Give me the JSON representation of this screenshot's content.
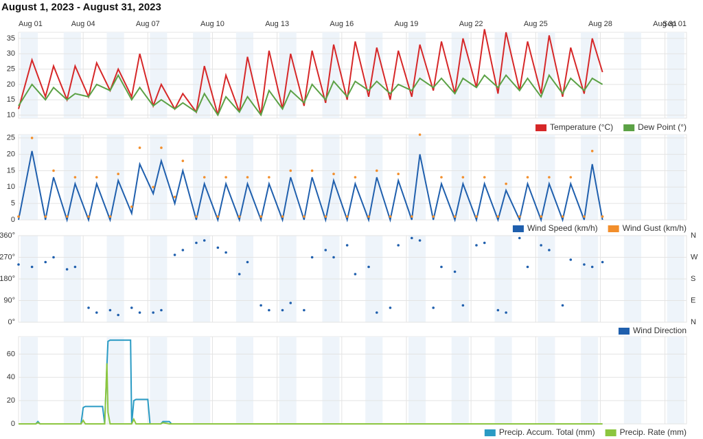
{
  "page_title": "August 1, 2023 - August 31, 2023",
  "chart_data": [
    {
      "type": "line",
      "xlim": [
        1,
        32
      ],
      "xticks": [
        {
          "value": 1,
          "label": "Aug 01"
        },
        {
          "value": 4,
          "label": "Aug 04"
        },
        {
          "value": 7,
          "label": "Aug 07"
        },
        {
          "value": 10,
          "label": "Aug 10"
        },
        {
          "value": 13,
          "label": "Aug 13"
        },
        {
          "value": 16,
          "label": "Aug 16"
        },
        {
          "value": 19,
          "label": "Aug 19"
        },
        {
          "value": 22,
          "label": "Aug 22"
        },
        {
          "value": 25,
          "label": "Aug 25"
        },
        {
          "value": 28,
          "label": "Aug 28"
        },
        {
          "value": 31,
          "label": "Aug 31"
        },
        {
          "value": 32,
          "label": "Sep 01"
        }
      ],
      "ylim": [
        9,
        37
      ],
      "yticks": [
        10,
        15,
        20,
        25,
        30,
        35
      ],
      "grid": true,
      "x": [
        1,
        1.625,
        2.25,
        2.625,
        3.25,
        3.625,
        4.25,
        4.625,
        5.25,
        5.625,
        6.25,
        6.625,
        7.25,
        7.625,
        8.25,
        8.625,
        9.25,
        9.625,
        10.25,
        10.625,
        11.25,
        11.625,
        12.25,
        12.625,
        13.25,
        13.625,
        14.25,
        14.625,
        15.25,
        15.625,
        16.25,
        16.625,
        17.25,
        17.625,
        18.25,
        18.625,
        19.25,
        19.625,
        20.25,
        20.625,
        21.25,
        21.625,
        22.25,
        22.625,
        23.25,
        23.625,
        24.25,
        24.625,
        25.25,
        25.625,
        26.25,
        26.625,
        27.25,
        27.625,
        28.1
      ],
      "series": [
        {
          "name": "Temperature (°C)",
          "color": "#d62728",
          "style": "line",
          "values": [
            12,
            28,
            16,
            26,
            15,
            26,
            16,
            27,
            18,
            25,
            16,
            30,
            13,
            20,
            12,
            17,
            11,
            26,
            10,
            23,
            11,
            29,
            10,
            31,
            12,
            30,
            13,
            31,
            14,
            33,
            15,
            34,
            16,
            32,
            15,
            31,
            16,
            33,
            18,
            34,
            17,
            35,
            19,
            38,
            17,
            37,
            18,
            34,
            17,
            36,
            16,
            32,
            17,
            35,
            24
          ]
        },
        {
          "name": "Dew Point (°)",
          "color": "#5ba145",
          "style": "line",
          "values": [
            13,
            20,
            15,
            19,
            15,
            17,
            16,
            20,
            18,
            23,
            15,
            19,
            13,
            15,
            12,
            14,
            11,
            17,
            10,
            16,
            11,
            16,
            10,
            18,
            12,
            18,
            14,
            20,
            15,
            21,
            16,
            21,
            18,
            21,
            17,
            20,
            18,
            22,
            19,
            22,
            17,
            22,
            19,
            23,
            19,
            23,
            18,
            22,
            16,
            23,
            17,
            22,
            18,
            22,
            20
          ]
        }
      ]
    },
    {
      "type": "line",
      "xlim": [
        1,
        32
      ],
      "ylim": [
        0,
        26
      ],
      "yticks": [
        0,
        5,
        10,
        15,
        20,
        25
      ],
      "grid": true,
      "x": [
        1,
        1.625,
        2.25,
        2.625,
        3.25,
        3.625,
        4.25,
        4.625,
        5.25,
        5.625,
        6.25,
        6.625,
        7.25,
        7.625,
        8.25,
        8.625,
        9.25,
        9.625,
        10.25,
        10.625,
        11.25,
        11.625,
        12.25,
        12.625,
        13.25,
        13.625,
        14.25,
        14.625,
        15.25,
        15.625,
        16.25,
        16.625,
        17.25,
        17.625,
        18.25,
        18.625,
        19.25,
        19.625,
        20.25,
        20.625,
        21.25,
        21.625,
        22.25,
        22.625,
        23.25,
        23.625,
        24.25,
        24.625,
        25.25,
        25.625,
        26.25,
        26.625,
        27.25,
        27.625,
        28.1
      ],
      "series": [
        {
          "name": "Wind Speed (km/h)",
          "color": "#1f5fad",
          "style": "line",
          "values": [
            0,
            21,
            0,
            13,
            0,
            11,
            0,
            11,
            0,
            12,
            2,
            17,
            8,
            18,
            5,
            15,
            0,
            11,
            0,
            11,
            0,
            11,
            0,
            11,
            0,
            13,
            0,
            13,
            0,
            12,
            0,
            11,
            0,
            13,
            0,
            12,
            0,
            20,
            0,
            11,
            0,
            11,
            0,
            11,
            0,
            9,
            0,
            11,
            0,
            11,
            0,
            11,
            0,
            17,
            0
          ]
        },
        {
          "name": "Wind Gust (km/h)",
          "color": "#f28e2b",
          "style": "markers",
          "values": [
            1,
            25,
            1,
            15,
            1,
            13,
            1,
            13,
            1,
            14,
            4,
            22,
            10,
            22,
            7,
            18,
            1,
            13,
            1,
            13,
            1,
            13,
            1,
            13,
            1,
            15,
            1,
            15,
            1,
            14,
            1,
            13,
            1,
            15,
            1,
            14,
            1,
            26,
            1,
            13,
            1,
            13,
            1,
            13,
            1,
            11,
            1,
            13,
            1,
            13,
            1,
            13,
            1,
            21,
            1
          ]
        }
      ]
    },
    {
      "type": "scatter",
      "xlim": [
        1,
        32
      ],
      "ylim": [
        0,
        360
      ],
      "grid": true,
      "yticks": [
        {
          "value": 0,
          "label": "0°"
        },
        {
          "value": 90,
          "label": "90°"
        },
        {
          "value": 180,
          "label": "180°"
        },
        {
          "value": 270,
          "label": "270°"
        },
        {
          "value": 360,
          "label": "360°"
        }
      ],
      "y2lim": [
        0,
        360
      ],
      "y2ticks": [
        {
          "value": 0,
          "label": "N"
        },
        {
          "value": 90,
          "label": "E"
        },
        {
          "value": 180,
          "label": "S"
        },
        {
          "value": 270,
          "label": "W"
        },
        {
          "value": 360,
          "label": "N"
        }
      ],
      "x": [
        1,
        1.625,
        2.25,
        2.625,
        3.25,
        3.625,
        4.25,
        4.625,
        5.25,
        5.625,
        6.25,
        6.625,
        7.25,
        7.625,
        8.25,
        8.625,
        9.25,
        9.625,
        10.25,
        10.625,
        11.25,
        11.625,
        12.25,
        12.625,
        13.25,
        13.625,
        14.25,
        14.625,
        15.25,
        15.625,
        16.25,
        16.625,
        17.25,
        17.625,
        18.25,
        18.625,
        19.25,
        19.625,
        20.25,
        20.625,
        21.25,
        21.625,
        22.25,
        22.625,
        23.25,
        23.625,
        24.25,
        24.625,
        25.25,
        25.625,
        26.25,
        26.625,
        27.25,
        27.625,
        28.1
      ],
      "series": [
        {
          "name": "Wind Direction",
          "color": "#1f5fad",
          "style": "markers",
          "values": [
            240,
            230,
            250,
            270,
            220,
            230,
            60,
            40,
            50,
            30,
            60,
            40,
            40,
            50,
            280,
            300,
            330,
            340,
            310,
            290,
            200,
            250,
            70,
            50,
            50,
            80,
            50,
            270,
            300,
            270,
            320,
            200,
            230,
            40,
            60,
            320,
            350,
            340,
            60,
            230,
            210,
            70,
            320,
            330,
            50,
            40,
            350,
            230,
            320,
            300,
            70,
            260,
            240,
            230,
            250
          ]
        }
      ]
    },
    {
      "type": "line",
      "xlim": [
        1,
        32
      ],
      "ylim": [
        0,
        75
      ],
      "yticks": [
        0,
        20,
        40,
        60
      ],
      "grid": true,
      "x": [
        1,
        1.8,
        1.9,
        2.0,
        3.9,
        4.0,
        4.1,
        4.9,
        5.0,
        5.1,
        5.15,
        5.25,
        6.2,
        6.25,
        6.35,
        6.45,
        7.0,
        7.1,
        7.6,
        7.7,
        8.0,
        8.1,
        28.1
      ],
      "series": [
        {
          "name": "Precip. Accum. Total (mm)",
          "color": "#2a9bc4",
          "style": "line",
          "values": [
            0,
            0,
            2,
            0,
            0,
            14,
            15,
            15,
            0,
            50,
            71,
            72,
            72,
            0,
            20,
            21,
            21,
            0,
            0,
            2,
            2,
            0,
            0
          ]
        },
        {
          "name": "Precip. Rate (mm)",
          "color": "#8cc63f",
          "style": "line",
          "values": [
            0,
            0,
            1,
            0,
            0,
            3,
            0,
            0,
            0,
            52,
            10,
            0,
            0,
            0,
            4,
            0,
            0,
            0,
            0,
            1,
            0,
            0,
            0
          ]
        }
      ]
    }
  ]
}
